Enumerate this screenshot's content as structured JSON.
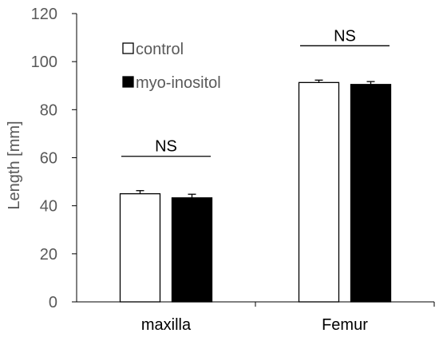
{
  "chart_data": {
    "type": "bar",
    "categories": [
      "maxilla",
      "Femur"
    ],
    "series": [
      {
        "name": "control",
        "values": [
          45,
          91.3
        ],
        "errors": [
          1.3,
          1.0
        ],
        "fill": "#ffffff"
      },
      {
        "name": "myo-inositol",
        "values": [
          43.3,
          90.5
        ],
        "errors": [
          1.5,
          1.2
        ],
        "fill": "#000000"
      }
    ],
    "ylabel": "Length [mm]",
    "ylim": [
      0,
      120
    ],
    "yticks": [
      "0",
      "20",
      "40",
      "60",
      "80",
      "100",
      "120"
    ],
    "grid": false,
    "legend": "top-left",
    "significance": [
      "NS",
      "NS"
    ]
  }
}
